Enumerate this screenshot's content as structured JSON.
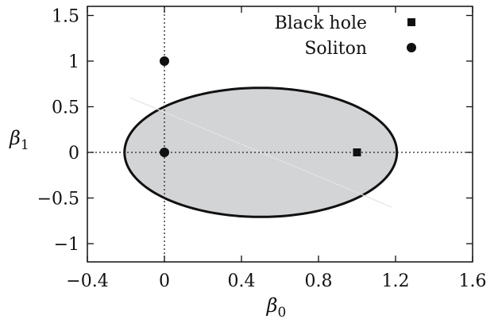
{
  "chart_data": {
    "type": "scatter",
    "xlabel_symbol": "β",
    "xlabel_subscript": "0",
    "ylabel_symbol": "β",
    "ylabel_subscript": "1",
    "xlim": [
      -0.4,
      1.6
    ],
    "ylim": [
      -1.2,
      1.6
    ],
    "xticks": [
      -0.4,
      0,
      0.4,
      0.8,
      1.2,
      1.6
    ],
    "xtick_labels": [
      "−0.4",
      "0",
      "0.4",
      "0.8",
      "1.2",
      "1.6"
    ],
    "yticks": [
      1.5,
      1,
      0.5,
      0,
      -0.5,
      -1
    ],
    "ytick_labels": [
      "1.5",
      "1",
      "0.5",
      "0",
      "−0.5",
      "−1"
    ],
    "grid": false,
    "reference_lines": {
      "x": 0,
      "y": 0,
      "style": "dotted"
    },
    "region": {
      "shape": "ellipse",
      "description_from_chart": "shaded elliptical region",
      "center": [
        0.5,
        0
      ],
      "boundary_points": [
        [
          0,
          1
        ],
        [
          0,
          0
        ],
        [
          1,
          0
        ],
        [
          -0.21,
          0.7
        ],
        [
          1.21,
          -0.7
        ]
      ],
      "fill_color": "#d3d4d6",
      "edge_color": "#111111"
    },
    "legend": {
      "placement": "top-right",
      "entries": [
        {
          "label": "Black hole",
          "marker": "square"
        },
        {
          "label": "Soliton",
          "marker": "circle"
        }
      ]
    },
    "series": [
      {
        "name": "Black hole",
        "marker": "square",
        "points": [
          [
            1,
            0
          ]
        ]
      },
      {
        "name": "Soliton",
        "marker": "circle",
        "points": [
          [
            0,
            1
          ],
          [
            0,
            0
          ]
        ]
      }
    ]
  }
}
